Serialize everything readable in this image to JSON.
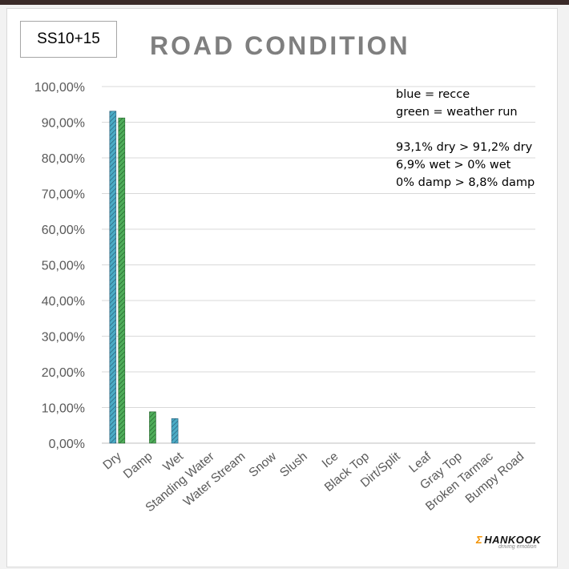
{
  "stage_label": "SS10+15",
  "notes": {
    "legend_blue": "blue = recce",
    "legend_green": "green = weather run",
    "line1": "93,1% dry > 91,2% dry",
    "line2": "6,9% wet > 0% wet",
    "line3": "0% damp > 8,8% damp"
  },
  "logo": {
    "brand": "HANKOOK",
    "tagline": "driving emotion"
  },
  "colors": {
    "recce": "#4bacc6",
    "weather": "#4fae5a",
    "grid": "#d9d9d9",
    "title": "#7f7f7f"
  },
  "chart_data": {
    "type": "bar",
    "title": "ROAD CONDITION",
    "categories": [
      "Dry",
      "Damp",
      "Wet",
      "Standing Water",
      "Water Stream",
      "Snow",
      "Slush",
      "Ice",
      "Black Top",
      "Dirt/Split",
      "Leaf",
      "Gray Top",
      "Broken Tarmac",
      "Bumpy Road"
    ],
    "series": [
      {
        "values": [
          93.1,
          0,
          6.9,
          0,
          0,
          0,
          0,
          0,
          0,
          0,
          0,
          0,
          0,
          0
        ],
        "pattern": "hatched",
        "color": "#4bacc6"
      },
      {
        "values": [
          91.2,
          8.8,
          0,
          0,
          0,
          0,
          0,
          0,
          0,
          0,
          0,
          0,
          0,
          0
        ],
        "pattern": "hatched",
        "color": "#4fae5a"
      }
    ],
    "ylim": [
      0,
      100
    ],
    "yticks": [
      "0,00%",
      "10,00%",
      "20,00%",
      "30,00%",
      "40,00%",
      "50,00%",
      "60,00%",
      "70,00%",
      "80,00%",
      "90,00%",
      "100,00%"
    ],
    "grid": true,
    "xlabel": "",
    "ylabel": ""
  }
}
